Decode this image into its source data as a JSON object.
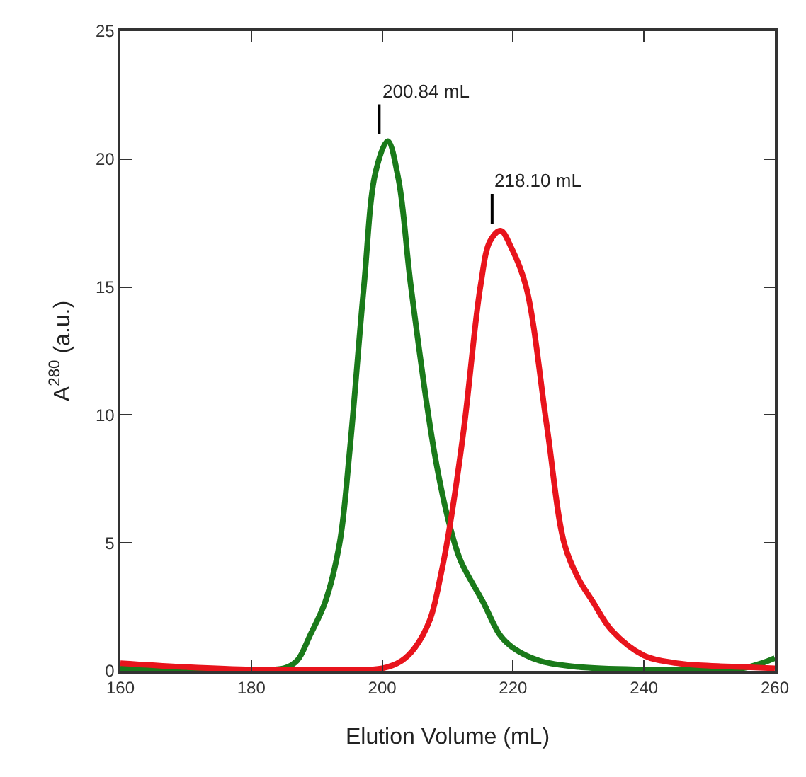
{
  "chart_data": {
    "type": "line",
    "xlabel": "Elution Volume (mL)",
    "ylabel": "A$^{280}$ (a.u.)",
    "xlim": [
      160,
      260
    ],
    "xticks": [
      160,
      180,
      200,
      220,
      240,
      260
    ],
    "ylim": [
      0,
      25
    ],
    "yticks": [
      0,
      5,
      10,
      15,
      20,
      25
    ],
    "marker": "none",
    "line_style": "solid",
    "series": [
      {
        "color": "#1a7a1a",
        "x": [
          160,
          170,
          180,
          185,
          187,
          189,
          191.3,
          193.5,
          195,
          197.2,
          199,
          200.84,
          202.5,
          204.4,
          208,
          210.3,
          212,
          215.4,
          218,
          220,
          224,
          230,
          240,
          250,
          255,
          258,
          260
        ],
        "values": [
          0.1,
          0.05,
          0.05,
          0.1,
          0.4,
          1.4,
          2.7,
          5,
          8.5,
          15,
          19.5,
          20.7,
          19.2,
          15,
          8.5,
          5.7,
          4.3,
          2.7,
          1.4,
          0.9,
          0.4,
          0.15,
          0.05,
          0.05,
          0.1,
          0.3,
          0.5
        ]
      },
      {
        "color": "#e8141c",
        "x": [
          160,
          170,
          180,
          190,
          200,
          203,
          205,
          207.3,
          209,
          210.3,
          212.5,
          215,
          216.5,
          218.1,
          219.8,
          222,
          225.2,
          227.8,
          230,
          232.2,
          235,
          240,
          245,
          250,
          255,
          260
        ],
        "values": [
          0.3,
          0.15,
          0.05,
          0.05,
          0.1,
          0.4,
          0.9,
          2,
          3.8,
          5.6,
          9.5,
          15,
          16.8,
          17.2,
          16.5,
          15,
          9.5,
          5,
          3.6,
          2.7,
          1.6,
          0.6,
          0.3,
          0.2,
          0.15,
          0.1
        ]
      }
    ],
    "annotations": [
      {
        "text": "200.84 mL",
        "x": 200.84,
        "y": 20.7
      },
      {
        "text": "218.10 mL",
        "x": 218.1,
        "y": 17.2
      }
    ]
  }
}
